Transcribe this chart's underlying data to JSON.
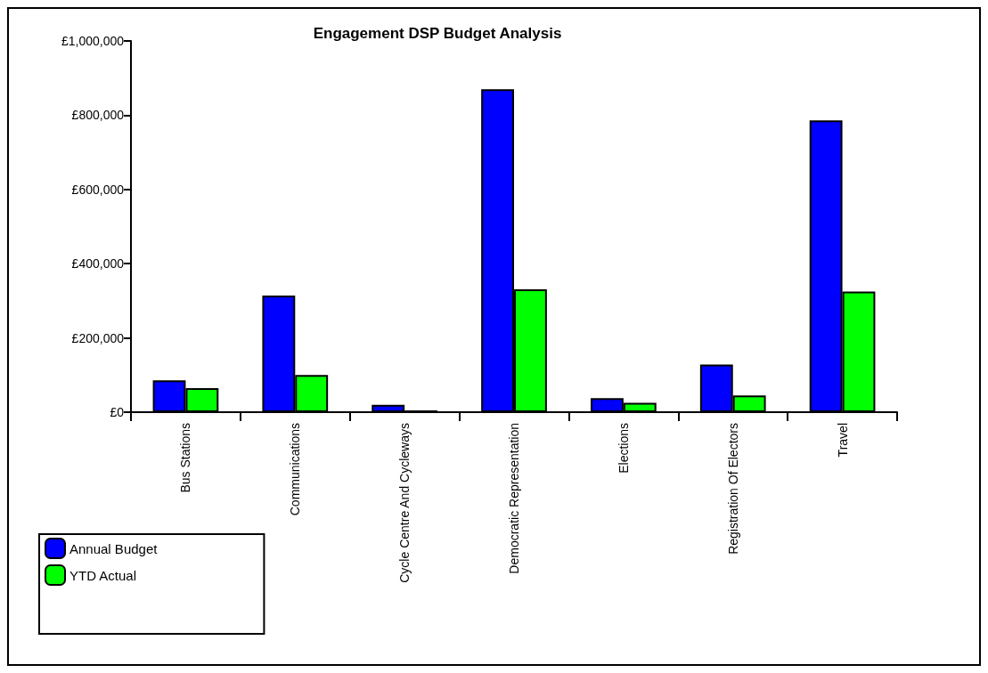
{
  "chart_data": {
    "type": "bar",
    "title": "Engagement DSP Budget Analysis",
    "categories": [
      "Bus Stations",
      "Communications",
      "Cycle Centre And Cycleways",
      "Democratic Representation",
      "Elections",
      "Registration Of Electors",
      "Travel"
    ],
    "series": [
      {
        "name": "Annual Budget",
        "color": "#0000ff",
        "values": [
          86000,
          314000,
          20000,
          870000,
          38000,
          128000,
          786000
        ]
      },
      {
        "name": "YTD Actual",
        "color": "#00ff00",
        "values": [
          65000,
          100000,
          5000,
          331000,
          25000,
          45000,
          325000
        ]
      }
    ],
    "ylim": [
      0,
      1000000
    ],
    "yticks": [
      {
        "value": 0,
        "label": "£0"
      },
      {
        "value": 200000,
        "label": "£200,000"
      },
      {
        "value": 400000,
        "label": "£400,000"
      },
      {
        "value": 600000,
        "label": "£600,000"
      },
      {
        "value": 800000,
        "label": "£800,000"
      },
      {
        "value": 1000000,
        "label": "£1,000,000"
      }
    ],
    "grid": false,
    "legend": "bottom left"
  }
}
